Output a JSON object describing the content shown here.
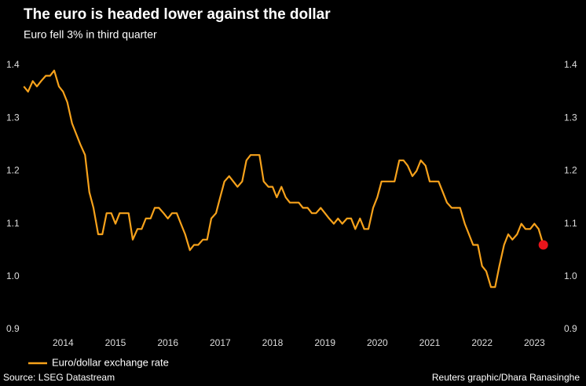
{
  "chart_data": {
    "type": "line",
    "title": "The euro is headed lower against the dollar",
    "subtitle": "Euro fell 3% in third quarter",
    "source": "Source: LSEG Datastream",
    "credit": "Reuters graphic/Dhara Ranasinghe",
    "legend": "bottom-left",
    "xlim": [
      2013.7,
      2023.9
    ],
    "xticks": [
      {
        "value": 2014.5,
        "label": "2014"
      },
      {
        "value": 2015.5,
        "label": "2015"
      },
      {
        "value": 2016.5,
        "label": "2016"
      },
      {
        "value": 2017.5,
        "label": "2017"
      },
      {
        "value": 2018.5,
        "label": "2018"
      },
      {
        "value": 2019.5,
        "label": "2019"
      },
      {
        "value": 2020.5,
        "label": "2020"
      },
      {
        "value": 2021.5,
        "label": "2021"
      },
      {
        "value": 2022.5,
        "label": "2022"
      },
      {
        "value": 2023.5,
        "label": "2023"
      }
    ],
    "ylim": [
      0.9,
      1.4
    ],
    "yticks": [
      0.9,
      {
        "value": 1,
        "label": "1.0"
      },
      1.1,
      1.2,
      1.3,
      1.4
    ],
    "y2lim": [
      0.9,
      1.4
    ],
    "y2ticks": [
      0.9,
      {
        "value": 1,
        "label": "1.0"
      },
      1.1,
      1.2,
      1.3,
      1.4
    ],
    "x": [
      2013.75,
      2013.83,
      2013.92,
      2014.0,
      2014.08,
      2014.17,
      2014.25,
      2014.33,
      2014.42,
      2014.5,
      2014.58,
      2014.67,
      2014.75,
      2014.83,
      2014.92,
      2015.0,
      2015.08,
      2015.17,
      2015.25,
      2015.33,
      2015.42,
      2015.5,
      2015.58,
      2015.67,
      2015.75,
      2015.83,
      2015.92,
      2016.0,
      2016.08,
      2016.17,
      2016.25,
      2016.33,
      2016.42,
      2016.5,
      2016.58,
      2016.67,
      2016.75,
      2016.83,
      2016.92,
      2017.0,
      2017.08,
      2017.17,
      2017.25,
      2017.33,
      2017.42,
      2017.5,
      2017.58,
      2017.67,
      2017.75,
      2017.83,
      2017.92,
      2018.0,
      2018.08,
      2018.17,
      2018.25,
      2018.33,
      2018.42,
      2018.5,
      2018.58,
      2018.67,
      2018.75,
      2018.83,
      2018.92,
      2019.0,
      2019.08,
      2019.17,
      2019.25,
      2019.33,
      2019.42,
      2019.5,
      2019.58,
      2019.67,
      2019.75,
      2019.83,
      2019.92,
      2020.0,
      2020.08,
      2020.17,
      2020.25,
      2020.33,
      2020.42,
      2020.5,
      2020.58,
      2020.67,
      2020.75,
      2020.83,
      2020.92,
      2021.0,
      2021.08,
      2021.17,
      2021.25,
      2021.33,
      2021.42,
      2021.5,
      2021.58,
      2021.67,
      2021.75,
      2021.83,
      2021.92,
      2022.0,
      2022.08,
      2022.17,
      2022.25,
      2022.33,
      2022.42,
      2022.5,
      2022.58,
      2022.67,
      2022.75,
      2022.83,
      2022.92,
      2023.0,
      2023.08,
      2023.17,
      2023.25,
      2023.33,
      2023.42,
      2023.5,
      2023.58,
      2023.67
    ],
    "series": [
      {
        "name": "Euro/dollar exchange rate",
        "color": "#f7a21b",
        "marker_color": "#e8141b",
        "values": [
          1.36,
          1.35,
          1.37,
          1.36,
          1.37,
          1.38,
          1.38,
          1.39,
          1.36,
          1.35,
          1.33,
          1.29,
          1.27,
          1.25,
          1.23,
          1.16,
          1.13,
          1.08,
          1.08,
          1.12,
          1.12,
          1.1,
          1.12,
          1.12,
          1.12,
          1.07,
          1.09,
          1.09,
          1.11,
          1.11,
          1.13,
          1.13,
          1.12,
          1.11,
          1.12,
          1.12,
          1.1,
          1.08,
          1.05,
          1.06,
          1.06,
          1.07,
          1.07,
          1.11,
          1.12,
          1.15,
          1.18,
          1.19,
          1.18,
          1.17,
          1.18,
          1.22,
          1.23,
          1.23,
          1.23,
          1.18,
          1.17,
          1.17,
          1.15,
          1.17,
          1.15,
          1.14,
          1.14,
          1.14,
          1.13,
          1.13,
          1.12,
          1.12,
          1.13,
          1.12,
          1.11,
          1.1,
          1.11,
          1.1,
          1.11,
          1.11,
          1.09,
          1.11,
          1.09,
          1.09,
          1.13,
          1.15,
          1.18,
          1.18,
          1.18,
          1.18,
          1.22,
          1.22,
          1.21,
          1.19,
          1.2,
          1.22,
          1.21,
          1.18,
          1.18,
          1.18,
          1.16,
          1.14,
          1.13,
          1.13,
          1.13,
          1.1,
          1.08,
          1.06,
          1.06,
          1.02,
          1.01,
          0.98,
          0.98,
          1.02,
          1.06,
          1.08,
          1.07,
          1.08,
          1.1,
          1.09,
          1.09,
          1.1,
          1.09,
          1.06
        ]
      }
    ]
  }
}
